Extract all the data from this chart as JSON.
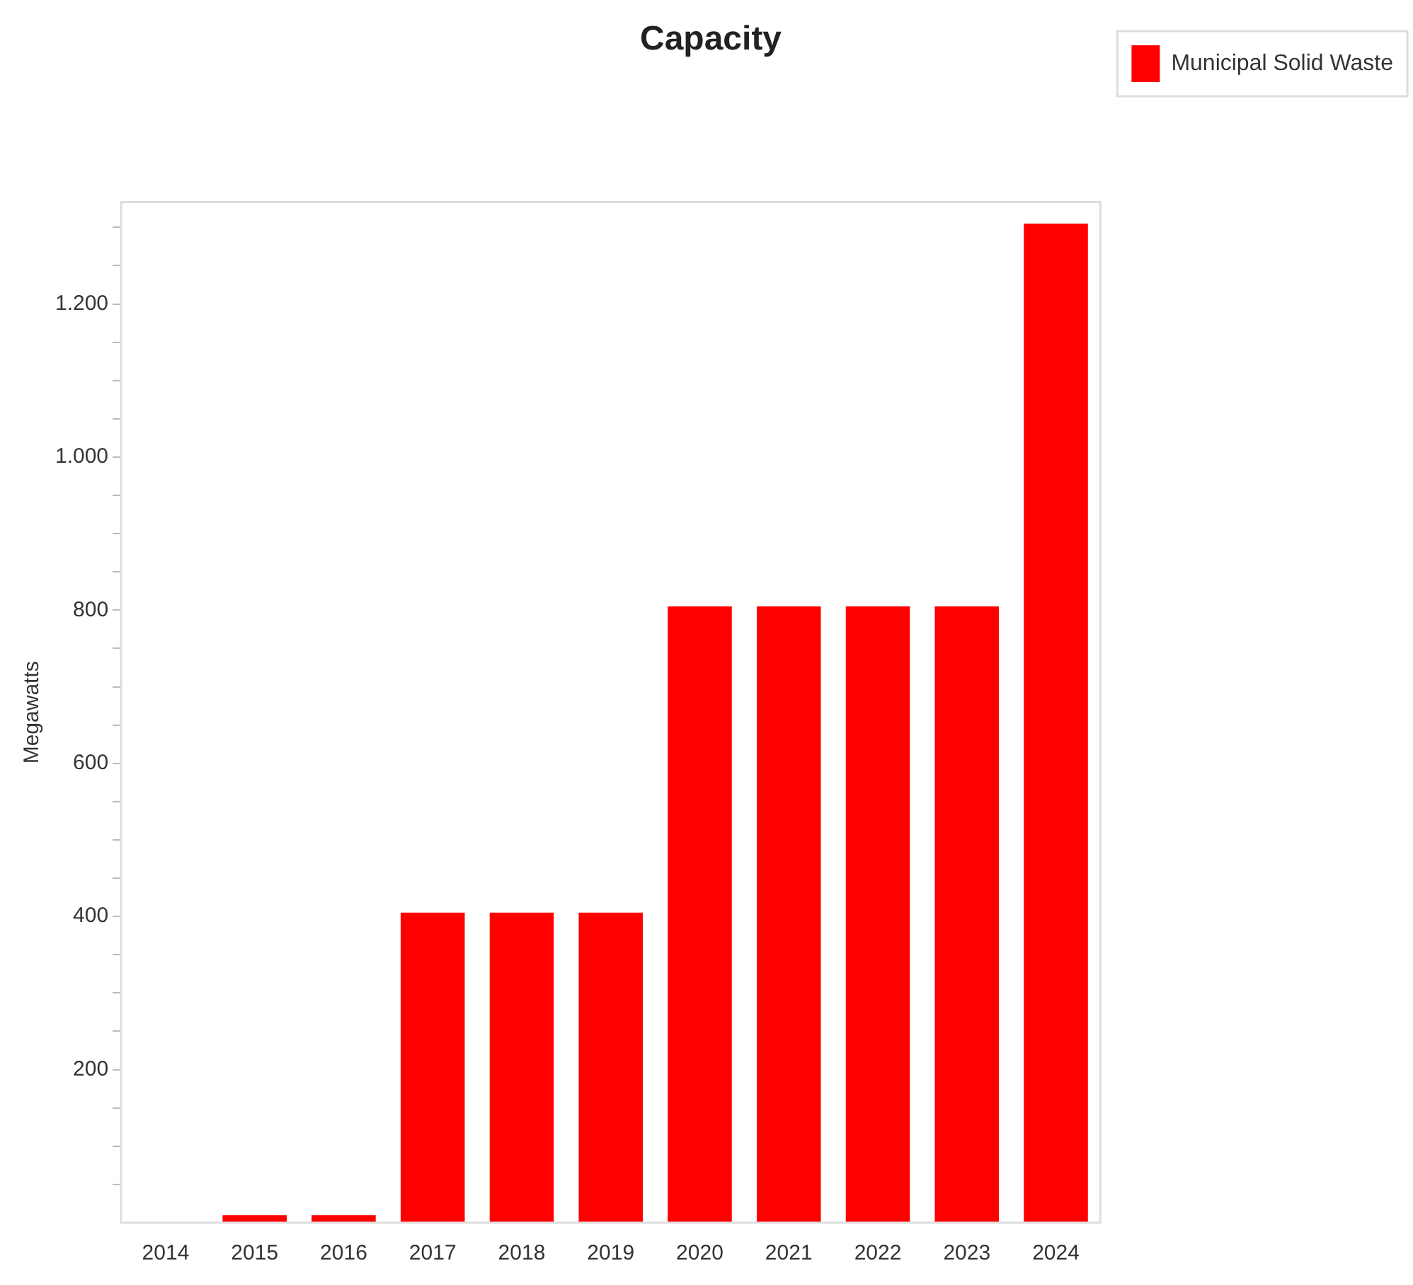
{
  "chart_data": {
    "type": "bar",
    "title": "Capacity",
    "ylabel": "Megawatts",
    "categories": [
      "2014",
      "2015",
      "2016",
      "2017",
      "2018",
      "2019",
      "2020",
      "2021",
      "2022",
      "2023",
      "2024"
    ],
    "series": [
      {
        "name": "Municipal Solid Waste",
        "color": "#ff0000",
        "values": [
          0,
          10,
          10,
          405,
          405,
          405,
          805,
          805,
          805,
          805,
          1305
        ]
      }
    ],
    "ylim": [
      0,
      1333
    ],
    "yticks": [
      {
        "value": 50,
        "label": null
      },
      {
        "value": 100,
        "label": null
      },
      {
        "value": 150,
        "label": null
      },
      {
        "value": 200,
        "label": "200"
      },
      {
        "value": 250,
        "label": null
      },
      {
        "value": 300,
        "label": null
      },
      {
        "value": 350,
        "label": null
      },
      {
        "value": 400,
        "label": "400"
      },
      {
        "value": 450,
        "label": null
      },
      {
        "value": 500,
        "label": null
      },
      {
        "value": 550,
        "label": null
      },
      {
        "value": 600,
        "label": "600"
      },
      {
        "value": 650,
        "label": null
      },
      {
        "value": 700,
        "label": null
      },
      {
        "value": 750,
        "label": null
      },
      {
        "value": 800,
        "label": "800"
      },
      {
        "value": 850,
        "label": null
      },
      {
        "value": 900,
        "label": null
      },
      {
        "value": 950,
        "label": null
      },
      {
        "value": 1000,
        "label": "1.000"
      },
      {
        "value": 1050,
        "label": null
      },
      {
        "value": 1100,
        "label": null
      },
      {
        "value": 1150,
        "label": null
      },
      {
        "value": 1200,
        "label": "1.200"
      },
      {
        "value": 1250,
        "label": null
      },
      {
        "value": 1300,
        "label": null
      }
    ],
    "grid": false,
    "legend": "top right"
  }
}
